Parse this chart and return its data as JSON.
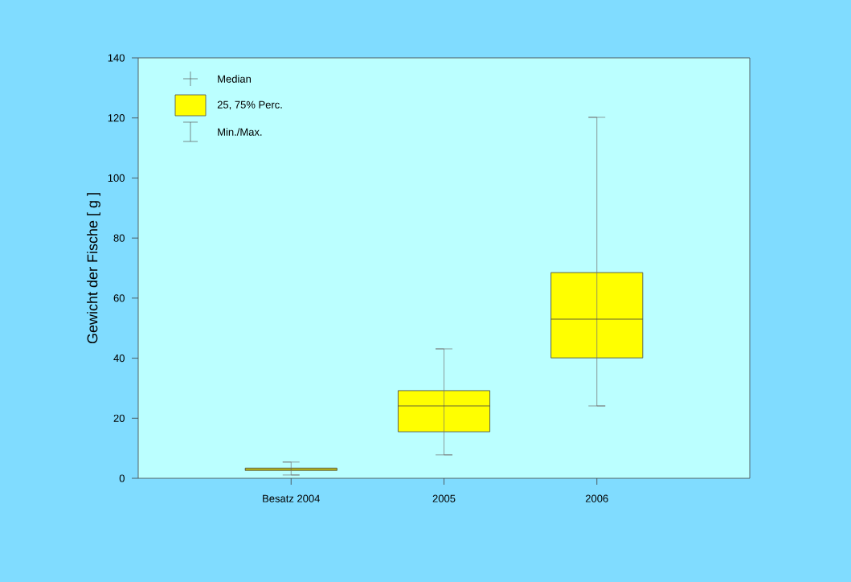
{
  "chart_data": {
    "type": "box",
    "ylabel": "Gewicht der Fische  [ g ]",
    "categories": [
      "Besatz 2004",
      "2005",
      "2006"
    ],
    "boxes": [
      {
        "low": 1.1,
        "q1": 2.6,
        "median": 3.0,
        "q3": 3.4,
        "high": 5.4
      },
      {
        "low": 7.8,
        "q1": 15.5,
        "median": 24.1,
        "q3": 29.2,
        "high": 43.1
      },
      {
        "low": 24.1,
        "q1": 40.1,
        "median": 53.0,
        "q3": 68.5,
        "high": 120.2
      }
    ],
    "color": "#ffff00",
    "ylim": [
      0,
      140
    ],
    "yticks": [
      0,
      20,
      40,
      60,
      80,
      100,
      120,
      140
    ],
    "annotations": [
      "Median",
      "25, 75% Perc.",
      "Min./Max."
    ]
  }
}
